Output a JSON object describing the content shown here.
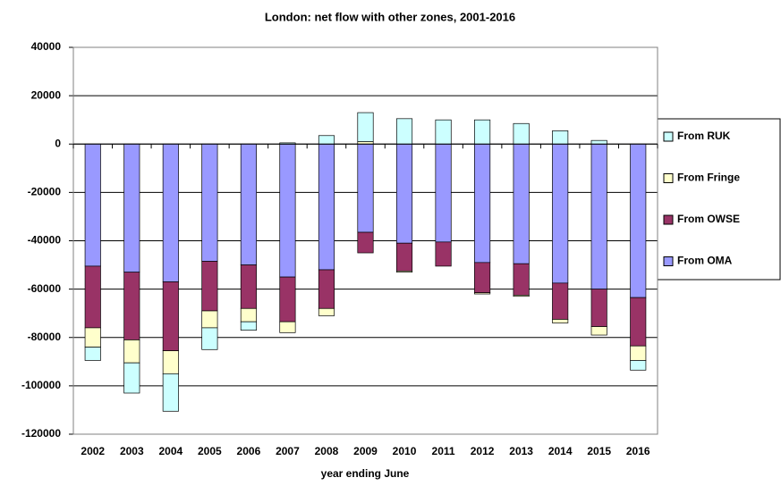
{
  "chart_data": {
    "type": "stacked_bar",
    "title": "London: net flow with other zones, 2001-2016",
    "x_label": "year ending June",
    "categories": [
      "2002",
      "2003",
      "2004",
      "2005",
      "2006",
      "2007",
      "2008",
      "2009",
      "2010",
      "2011",
      "2012",
      "2013",
      "2014",
      "2015",
      "2016"
    ],
    "series": [
      {
        "name": "From OMA",
        "color": "#9999ff",
        "values": [
          -50500,
          -53000,
          -57000,
          -48500,
          -50000,
          -55000,
          -52000,
          -36500,
          -41000,
          -40500,
          -49000,
          -49500,
          -57500,
          -60000,
          -63500
        ]
      },
      {
        "name": "From OWSE",
        "color": "#993366",
        "values": [
          -25500,
          -28000,
          -28500,
          -20500,
          -18000,
          -18500,
          -16000,
          -8500,
          -11500,
          -10000,
          -12500,
          -13000,
          -15000,
          -15500,
          -20000
        ]
      },
      {
        "name": "From Fringe",
        "color": "#ffffcc",
        "values": [
          -8000,
          -9500,
          -9500,
          -7000,
          -5500,
          -4500,
          -3000,
          1000,
          -500,
          0,
          -500,
          -500,
          -1500,
          -3500,
          -6000
        ]
      },
      {
        "name": "From RUK",
        "color": "#ccffff",
        "values": [
          -5500,
          -12500,
          -15500,
          -9000,
          -3500,
          500,
          3500,
          12000,
          10500,
          10000,
          10000,
          8500,
          5500,
          1500,
          -4000
        ]
      }
    ],
    "ylim": [
      -120000,
      40000
    ],
    "yticks": [
      -120000,
      -100000,
      -80000,
      -60000,
      -40000,
      -20000,
      0,
      20000,
      40000
    ],
    "grid": true,
    "legend": "right"
  }
}
